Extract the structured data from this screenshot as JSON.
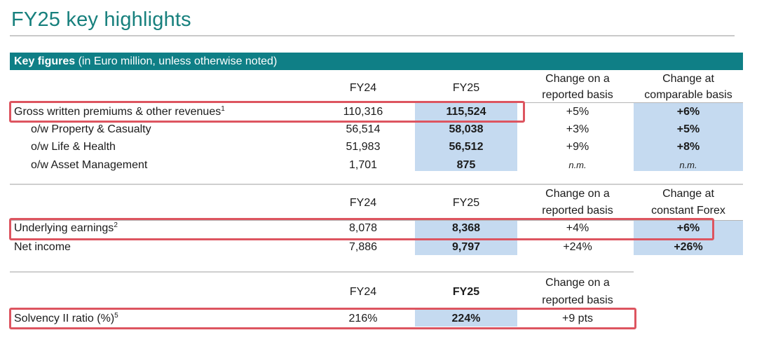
{
  "title": "FY25 key highlights",
  "section_header": {
    "bold": "Key figures",
    "rest": " (in Euro million, unless otherwise noted)"
  },
  "table1": {
    "headers": {
      "fy24": "FY24",
      "fy25": "FY25",
      "reported_1": "Change on a",
      "reported_2": "reported basis",
      "comparable_1": "Change at",
      "comparable_2": "comparable basis"
    },
    "rows": [
      {
        "label": "Gross written premiums & other revenues",
        "sup": "1",
        "fy24": "110,316",
        "fy25": "115,524",
        "reported": "+5%",
        "comparable": "+6%"
      },
      {
        "label": "o/w Property & Casualty",
        "fy24": "56,514",
        "fy25": "58,038",
        "reported": "+3%",
        "comparable": "+5%"
      },
      {
        "label": "o/w Life & Health",
        "fy24": "51,983",
        "fy25": "56,512",
        "reported": "+9%",
        "comparable": "+8%"
      },
      {
        "label": "o/w Asset Management",
        "fy24": "1,701",
        "fy25": "875",
        "reported": "n.m.",
        "comparable": "n.m."
      }
    ]
  },
  "table2": {
    "headers": {
      "fy24": "FY24",
      "fy25": "FY25",
      "reported_1": "Change on a",
      "reported_2": "reported basis",
      "forex_1": "Change at",
      "forex_2": "constant Forex"
    },
    "rows": [
      {
        "label": "Underlying earnings",
        "sup": "2",
        "fy24": "8,078",
        "fy25": "8,368",
        "reported": "+4%",
        "forex": "+6%"
      },
      {
        "label": "Net income",
        "fy24": "7,886",
        "fy25": "9,797",
        "reported": "+24%",
        "forex": "+26%"
      }
    ]
  },
  "table3": {
    "headers": {
      "fy24": "FY24",
      "fy25": "FY25",
      "reported_1": "Change on a",
      "reported_2": "reported basis"
    },
    "rows": [
      {
        "label": "Solvency II ratio (%)",
        "sup": "5",
        "fy24": "216%",
        "fy25": "224%",
        "reported": "+9 pts"
      }
    ]
  },
  "colors": {
    "title": "#17807d",
    "header_bar": "#0f7f86",
    "highlight": "#c5daf0",
    "annotation_box": "#dd5560"
  }
}
